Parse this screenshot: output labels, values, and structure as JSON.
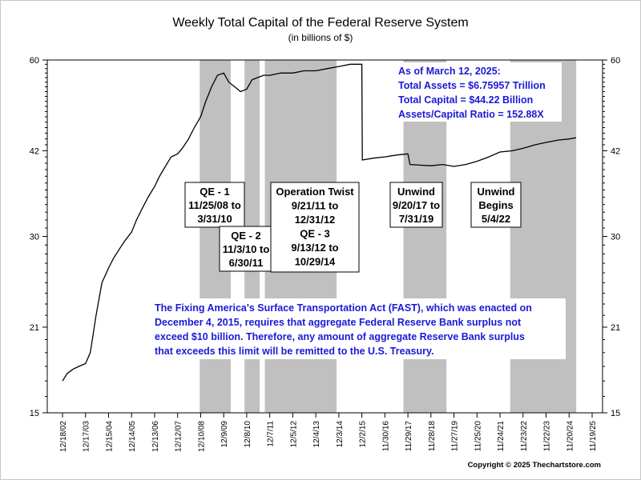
{
  "chart_data": {
    "type": "line",
    "title": "Weekly Total Capital of the Federal Reserve System",
    "subtitle": "(in billions of $)",
    "ylim": [
      15,
      60
    ],
    "yscale": "log",
    "yticks": [
      15,
      21,
      30,
      42,
      60
    ],
    "x_tick_labels": [
      "12/18/02",
      "12/17/03",
      "12/15/04",
      "12/14/05",
      "12/13/06",
      "12/12/07",
      "12/10/08",
      "12/9/09",
      "12/8/10",
      "12/7/11",
      "12/5/12",
      "12/4/13",
      "12/3/14",
      "12/2/15",
      "11/30/16",
      "11/29/17",
      "11/28/18",
      "11/27/19",
      "11/25/20",
      "11/24/21",
      "11/23/22",
      "11/22/23",
      "11/20/24",
      "11/19/25"
    ],
    "x_range": [
      "2002-12-18",
      "2025-11-19"
    ],
    "grid": false,
    "legend": "none",
    "line_color": "#000000",
    "shade_color": "#c0c0c0",
    "shaded_periods": [
      {
        "start": "2008-11-25",
        "end": "2010-03-31"
      },
      {
        "start": "2010-11-03",
        "end": "2011-06-30"
      },
      {
        "start": "2011-09-21",
        "end": "2014-10-29"
      },
      {
        "start": "2017-09-20",
        "end": "2019-07-31"
      },
      {
        "start": "2022-05-04",
        "end": "2025-03-12"
      }
    ],
    "series": [
      {
        "x": [
          "2002-12-18",
          "2003-03-01",
          "2003-06-01",
          "2003-09-01",
          "2003-12-17",
          "2004-03-01",
          "2004-06-01",
          "2004-09-01",
          "2004-12-15",
          "2005-03-01",
          "2005-06-01",
          "2005-09-01",
          "2005-12-14",
          "2006-03-01",
          "2006-06-01",
          "2006-09-01",
          "2006-12-13",
          "2007-03-01",
          "2007-06-01",
          "2007-09-01",
          "2007-12-12",
          "2008-03-01",
          "2008-06-01",
          "2008-09-01",
          "2008-12-10",
          "2009-03-01",
          "2009-06-01",
          "2009-09-01",
          "2009-12-09",
          "2010-03-01",
          "2010-06-01",
          "2010-09-01",
          "2010-12-08",
          "2011-03-01",
          "2011-06-01",
          "2011-09-01",
          "2011-12-07",
          "2012-06-01",
          "2012-12-05",
          "2013-06-01",
          "2013-12-04",
          "2014-06-01",
          "2014-12-03",
          "2015-06-01",
          "2015-12-02",
          "2015-12-09",
          "2016-06-01",
          "2016-11-30",
          "2017-06-01",
          "2017-11-29",
          "2018-01-01",
          "2018-06-01",
          "2018-11-28",
          "2019-06-01",
          "2019-11-27",
          "2020-06-01",
          "2020-11-25",
          "2021-06-01",
          "2021-11-24",
          "2022-06-01",
          "2022-11-23",
          "2023-06-01",
          "2023-11-22",
          "2024-06-01",
          "2024-11-20",
          "2025-03-12"
        ],
        "values": [
          17.0,
          17.5,
          17.8,
          18.0,
          18.2,
          19.0,
          22.0,
          25.0,
          26.5,
          27.5,
          28.5,
          29.5,
          30.5,
          32.0,
          33.5,
          35.0,
          36.5,
          38.0,
          39.5,
          41.0,
          41.5,
          42.5,
          44.0,
          46.0,
          48.0,
          51.0,
          54.0,
          56.5,
          57.0,
          55.0,
          54.0,
          53.0,
          53.5,
          55.5,
          56.0,
          56.5,
          56.5,
          57.0,
          57.0,
          57.5,
          57.5,
          58.0,
          58.5,
          59.0,
          59.0,
          40.5,
          40.8,
          41.0,
          41.3,
          41.5,
          39.8,
          39.7,
          39.6,
          39.8,
          39.5,
          39.8,
          40.3,
          41.0,
          41.8,
          42.0,
          42.4,
          43.0,
          43.4,
          43.8,
          44.0,
          44.22
        ]
      }
    ]
  },
  "boxes": {
    "qe1": [
      "QE - 1",
      "11/25/08 to",
      "3/31/10"
    ],
    "qe2": [
      "QE - 2",
      "11/3/10 to",
      "6/30/11"
    ],
    "twist": [
      "Operation Twist",
      "9/21/11 to",
      "12/31/12",
      "QE - 3",
      "9/13/12 to",
      "10/29/14"
    ],
    "unwind1": [
      "Unwind",
      "9/20/17 to",
      "7/31/19"
    ],
    "unwind2": [
      "Unwind",
      "Begins",
      "5/4/22"
    ]
  },
  "stats": [
    "As of March 12, 2025:",
    "Total Assets = $6.75957 Trillion",
    "Total Capital  = $44.22 Billion",
    "Assets/Capital Ratio = 152.88X"
  ],
  "fast_note": [
    "The Fixing America's Surface Transportation Act (FAST), which was enacted on",
    "December 4, 2015, requires that aggregate Federal Reserve Bank surplus not",
    "exceed $10 billion.  Therefore, any amount of aggregate Reserve Bank surplus",
    "that exceeds this limit will be remitted to the U.S. Treasury."
  ],
  "copyright": "Copyright © 2025 Thechartstore.com",
  "colors": {
    "annotation_blue": "#1a1ad6"
  }
}
